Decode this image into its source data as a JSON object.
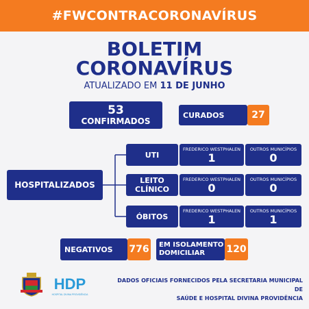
{
  "banner": "#FWCONTRACORONAVÍRUS",
  "title_line1": "BOLETIM",
  "title_line2": "CORONAVÍRUS",
  "updated_prefix": "ATUALIZADO EM ",
  "updated_date": "11 DE JUNHO",
  "confirmed": {
    "value": "53",
    "label": "CONFIRMADOS"
  },
  "cured": {
    "label": "CURADOS",
    "value": "27"
  },
  "hospitalized_label": "HOSPITALIZADOS",
  "col_fw": "FREDERICO WESTPHALEN",
  "col_other": "OUTROS MUNICÍPIOS",
  "rows": [
    {
      "label": "UTI",
      "fw": "1",
      "other": "0"
    },
    {
      "label": "LEITO CLÍNICO",
      "fw": "0",
      "other": "0"
    },
    {
      "label": "ÓBITOS",
      "fw": "1",
      "other": "1"
    }
  ],
  "negative": {
    "label": "NEGATIVOS",
    "value": "776"
  },
  "isolation": {
    "line1": "EM ISOLAMENTO",
    "line2": "DOMICILIAR",
    "value": "120"
  },
  "footer_line1": "DADOS OFICIAIS FORNECIDOS PELA SECRETARIA MUNICIPAL DE",
  "footer_line2": "SAÚDE E HOSPITAL DIVINA PROVIDÊNCIA",
  "logo_text": "HDP",
  "logo_subtext": "HOSPITAL DIVINA PROVIDÊNCIA",
  "colors": {
    "navy": "#1f2f8a",
    "orange": "#f47b20",
    "light_blue": "#2a9ad8"
  }
}
